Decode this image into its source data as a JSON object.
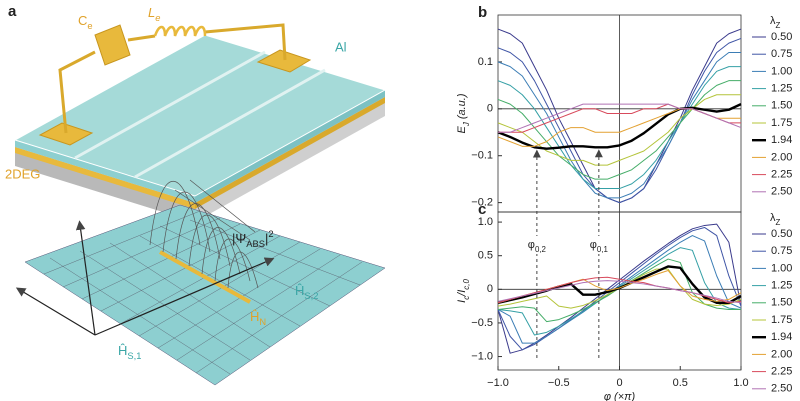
{
  "illustration": {
    "panel_label": "a",
    "capacitor": {
      "text": "C",
      "sub": "e"
    },
    "inductor": {
      "text": "L",
      "sub": "e"
    },
    "aluminium": "Al",
    "substrate": "2DEG",
    "wavefunction": {
      "pre": "|Ψ",
      "sub": "ABS",
      "post": "|",
      "sup": "2"
    },
    "hamiltonians": [
      {
        "text": "Ĥ",
        "sub": "S,2"
      },
      {
        "text": "Ĥ",
        "sub": "N"
      },
      {
        "text": "Ĥ",
        "sub": "S,1"
      }
    ]
  },
  "chart_data": [
    {
      "type": "line",
      "panel_label": "b",
      "ylabel": {
        "text": "E",
        "sub": "J",
        "post": " (a.u.)"
      },
      "legend_title": {
        "text": "λ",
        "sub": "Z"
      },
      "x": [
        -1,
        -0.9,
        -0.8,
        -0.7,
        -0.6,
        -0.5,
        -0.4,
        -0.3,
        -0.2,
        -0.1,
        0,
        0.1,
        0.2,
        0.3,
        0.4,
        0.5,
        0.6,
        0.7,
        0.8,
        0.9,
        1
      ],
      "xlim": [
        -1,
        1
      ],
      "ylim": [
        -0.22,
        0.2
      ],
      "yticks": [
        {
          "value": -0.2,
          "label": "−0.2"
        },
        {
          "value": -0.1,
          "label": "−0.1"
        },
        0,
        0.1
      ],
      "series": [
        {
          "name": "0.50",
          "color": "#3a3a8c",
          "values": [
            0.17,
            0.16,
            0.14,
            0.09,
            0.04,
            -0.02,
            -0.07,
            -0.12,
            -0.17,
            -0.19,
            -0.2,
            -0.19,
            -0.17,
            -0.12,
            -0.07,
            -0.02,
            0.04,
            0.09,
            0.14,
            0.16,
            0.17
          ]
        },
        {
          "name": "0.75",
          "color": "#3f55a6",
          "values": [
            0.13,
            0.12,
            0.1,
            0.06,
            0.01,
            -0.04,
            -0.09,
            -0.14,
            -0.17,
            -0.19,
            -0.2,
            -0.19,
            -0.17,
            -0.13,
            -0.08,
            -0.03,
            0.03,
            0.08,
            0.12,
            0.14,
            0.15
          ]
        },
        {
          "name": "1.00",
          "color": "#3b7db5",
          "values": [
            0.1,
            0.09,
            0.07,
            0.03,
            -0.01,
            -0.06,
            -0.11,
            -0.15,
            -0.18,
            -0.19,
            -0.19,
            -0.18,
            -0.16,
            -0.12,
            -0.08,
            -0.03,
            0.02,
            0.06,
            0.1,
            0.12,
            0.12
          ]
        },
        {
          "name": "1.25",
          "color": "#35a0a6",
          "values": [
            0.06,
            0.05,
            0.03,
            0.0,
            -0.04,
            -0.08,
            -0.12,
            -0.15,
            -0.17,
            -0.17,
            -0.17,
            -0.16,
            -0.14,
            -0.11,
            -0.07,
            -0.03,
            0.01,
            0.05,
            0.08,
            0.09,
            0.09
          ]
        },
        {
          "name": "1.50",
          "color": "#45ad68",
          "values": [
            0.02,
            0.01,
            -0.01,
            -0.04,
            -0.07,
            -0.1,
            -0.12,
            -0.14,
            -0.15,
            -0.15,
            -0.14,
            -0.13,
            -0.11,
            -0.09,
            -0.06,
            -0.03,
            0.0,
            0.03,
            0.05,
            0.06,
            0.06
          ]
        },
        {
          "name": "1.75",
          "color": "#b4c43a",
          "values": [
            -0.03,
            -0.04,
            -0.05,
            -0.07,
            -0.09,
            -0.1,
            -0.11,
            -0.11,
            -0.12,
            -0.12,
            -0.11,
            -0.1,
            -0.09,
            -0.07,
            -0.05,
            -0.02,
            0.0,
            0.02,
            0.03,
            0.03,
            0.03
          ]
        },
        {
          "name": "1.94",
          "color": "#000000",
          "values": [
            -0.05,
            -0.06,
            -0.072,
            -0.082,
            -0.085,
            -0.083,
            -0.08,
            -0.08,
            -0.082,
            -0.082,
            -0.078,
            -0.068,
            -0.052,
            -0.032,
            -0.012,
            0.0,
            0.002,
            -0.002,
            -0.006,
            -0.002,
            0.01
          ]
        },
        {
          "name": "2.00",
          "color": "#e3a132",
          "values": [
            -0.06,
            -0.07,
            -0.08,
            -0.08,
            -0.07,
            -0.05,
            -0.04,
            -0.04,
            -0.05,
            -0.05,
            -0.05,
            -0.04,
            -0.03,
            -0.02,
            -0.01,
            0.0,
            0.0,
            -0.01,
            -0.02,
            -0.02,
            -0.02
          ]
        },
        {
          "name": "2.25",
          "color": "#d84a5c",
          "values": [
            -0.05,
            -0.05,
            -0.05,
            -0.04,
            -0.03,
            -0.02,
            -0.01,
            0.0,
            0.0,
            -0.01,
            -0.01,
            -0.01,
            0.0,
            0.0,
            0.01,
            0.0,
            0.0,
            -0.01,
            -0.02,
            -0.03,
            -0.03
          ]
        },
        {
          "name": "2.50",
          "color": "#b072b4",
          "values": [
            -0.05,
            -0.05,
            -0.04,
            -0.03,
            -0.02,
            -0.01,
            0.0,
            0.01,
            0.01,
            0.01,
            0.01,
            0.01,
            0.01,
            0.01,
            0.01,
            0.0,
            0.0,
            -0.01,
            -0.02,
            -0.03,
            -0.04
          ]
        }
      ]
    },
    {
      "type": "line",
      "panel_label": "c",
      "ylabel": {
        "text": "I",
        "sub": "c",
        "mid": "/I",
        "sub2": "c,0"
      },
      "xlabel": {
        "text": "φ",
        "post": " (×π)"
      },
      "legend_title": {
        "text": "λ",
        "sub": "Z"
      },
      "annotations": [
        {
          "text": "φ",
          "sub": "0,2",
          "x": -0.68
        },
        {
          "text": "φ",
          "sub": "0,1",
          "x": -0.17
        }
      ],
      "x": [
        -1,
        -0.9,
        -0.8,
        -0.7,
        -0.6,
        -0.5,
        -0.4,
        -0.3,
        -0.2,
        -0.1,
        0,
        0.1,
        0.2,
        0.3,
        0.4,
        0.5,
        0.6,
        0.7,
        0.8,
        0.9,
        1
      ],
      "xlim": [
        -1,
        1
      ],
      "ylim": [
        -1.2,
        1.15
      ],
      "xticks": [
        {
          "value": -1,
          "label": "−1.0"
        },
        {
          "value": -0.5,
          "label": "−0.5"
        },
        0,
        0.5,
        {
          "value": 1,
          "label": "1.0"
        }
      ],
      "yticks": [
        {
          "value": -1,
          "label": "−1.0"
        },
        {
          "value": -0.5,
          "label": "−0.5"
        },
        0,
        0.5,
        {
          "value": 1,
          "label": "1.0"
        }
      ],
      "series": [
        {
          "name": "0.50",
          "color": "#3a3a8c",
          "values": [
            -0.3,
            -0.95,
            -0.9,
            -0.8,
            -0.68,
            -0.55,
            -0.42,
            -0.28,
            -0.14,
            0.0,
            0.14,
            0.28,
            0.42,
            0.55,
            0.68,
            0.8,
            0.9,
            0.95,
            0.97,
            0.7,
            -0.25
          ]
        },
        {
          "name": "0.75",
          "color": "#3f55a6",
          "values": [
            -0.3,
            -0.7,
            -0.9,
            -0.82,
            -0.7,
            -0.58,
            -0.45,
            -0.32,
            -0.18,
            -0.04,
            0.1,
            0.24,
            0.38,
            0.52,
            0.65,
            0.77,
            0.87,
            0.92,
            0.8,
            0.2,
            -0.25
          ]
        },
        {
          "name": "1.00",
          "color": "#3b7db5",
          "values": [
            -0.3,
            -0.4,
            -0.8,
            -0.8,
            -0.7,
            -0.58,
            -0.46,
            -0.34,
            -0.21,
            -0.08,
            0.06,
            0.19,
            0.32,
            0.45,
            0.58,
            0.7,
            0.8,
            0.72,
            0.2,
            -0.2,
            -0.28
          ]
        },
        {
          "name": "1.25",
          "color": "#35a0a6",
          "values": [
            -0.3,
            -0.32,
            -0.35,
            -0.68,
            -0.64,
            -0.55,
            -0.44,
            -0.33,
            -0.21,
            -0.09,
            0.04,
            0.16,
            0.28,
            0.4,
            0.52,
            0.62,
            0.58,
            0.1,
            -0.2,
            -0.28,
            -0.3
          ]
        },
        {
          "name": "1.50",
          "color": "#45ad68",
          "values": [
            -0.3,
            -0.28,
            -0.26,
            -0.28,
            -0.48,
            -0.45,
            -0.38,
            -0.3,
            -0.2,
            -0.1,
            0.02,
            0.13,
            0.24,
            0.35,
            0.45,
            0.4,
            -0.05,
            -0.22,
            -0.28,
            -0.3,
            -0.3
          ]
        },
        {
          "name": "1.75",
          "color": "#b4c43a",
          "values": [
            -0.25,
            -0.22,
            -0.18,
            -0.14,
            -0.1,
            -0.25,
            -0.28,
            -0.24,
            -0.17,
            -0.08,
            0.02,
            0.12,
            0.22,
            0.3,
            0.3,
            0.05,
            -0.15,
            -0.22,
            -0.24,
            -0.22,
            -0.15
          ]
        },
        {
          "name": "1.94",
          "color": "#000000",
          "values": [
            -0.2,
            -0.16,
            -0.12,
            -0.07,
            -0.02,
            0.04,
            0.08,
            -0.08,
            -0.08,
            -0.04,
            0.02,
            0.1,
            0.18,
            0.26,
            0.34,
            0.32,
            0.08,
            -0.12,
            -0.2,
            -0.2,
            -0.1
          ]
        },
        {
          "name": "2.00",
          "color": "#e3a132",
          "values": [
            -0.2,
            -0.15,
            -0.1,
            -0.05,
            0.0,
            0.05,
            0.1,
            0.15,
            0.05,
            -0.02,
            0.02,
            0.09,
            0.15,
            0.22,
            0.28,
            0.05,
            -0.1,
            -0.15,
            -0.18,
            -0.15,
            -0.05
          ]
        },
        {
          "name": "2.25",
          "color": "#d84a5c",
          "values": [
            -0.2,
            -0.15,
            -0.1,
            -0.05,
            0.0,
            0.05,
            0.1,
            0.14,
            0.17,
            0.18,
            0.15,
            0.12,
            0.1,
            0.05,
            0.02,
            -0.02,
            -0.05,
            -0.1,
            -0.15,
            -0.2,
            -0.18
          ]
        },
        {
          "name": "2.50",
          "color": "#b072b4",
          "values": [
            -0.18,
            -0.14,
            -0.1,
            -0.06,
            -0.02,
            0.02,
            0.06,
            0.1,
            0.12,
            0.13,
            0.12,
            0.1,
            0.08,
            0.05,
            0.02,
            -0.02,
            -0.05,
            -0.09,
            -0.13,
            -0.18,
            -0.2
          ]
        }
      ]
    }
  ]
}
